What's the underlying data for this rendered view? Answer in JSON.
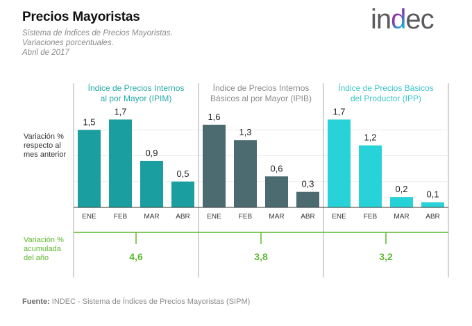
{
  "header": {
    "title": "Precios Mayoristas",
    "subtitle_lines": [
      "Sistema de Índices de Precios Mayoristas.",
      "Variaciones porcentuales.",
      "Abril de 2017"
    ],
    "logo": {
      "prefix": "in",
      "highlight": "d",
      "suffix": "ec"
    }
  },
  "row_labels": {
    "monthly": [
      "Variación %",
      "respecto al",
      "mes anterior"
    ],
    "cumulative": [
      "Variación %",
      "acumulada",
      "del año"
    ]
  },
  "source": {
    "label": "Fuente:",
    "text": " INDEC - Sistema de Índices de Precios Mayoristas (SIPM)"
  },
  "colors": {
    "IPIM": "#1a9ea0",
    "IPIB": "#4b6b70",
    "IPP": "#27d2d8",
    "cumulative": "#5cb82e",
    "header_IPIM": "#2aa8a8",
    "header_IPIB": "#8a8a8a",
    "header_IPP": "#3cc4cc"
  },
  "chart_data": {
    "type": "bar",
    "title": "Precios Mayoristas",
    "ylabel": "Variación % respecto al mes anterior",
    "categories": [
      "ENE",
      "FEB",
      "MAR",
      "ABR"
    ],
    "ylim": [
      0,
      1.7
    ],
    "grid": true,
    "series": [
      {
        "key": "IPIM",
        "name_lines": [
          "Índice de Precios Internos",
          "al por Mayor (IPIM)"
        ],
        "values": [
          1.5,
          1.7,
          0.9,
          0.5
        ],
        "labels": [
          "1,5",
          "1,7",
          "0,9",
          "0,5"
        ],
        "cumulative": "4,6",
        "cumulative_value": 4.6
      },
      {
        "key": "IPIB",
        "name_lines": [
          "Índice de Precios Internos",
          "Básicos al por Mayor (IPIB)"
        ],
        "values": [
          1.6,
          1.3,
          0.6,
          0.3
        ],
        "labels": [
          "1,6",
          "1,3",
          "0,6",
          "0,3"
        ],
        "cumulative": "3,8",
        "cumulative_value": 3.8
      },
      {
        "key": "IPP",
        "name_lines": [
          "Índice de Precios Básicos",
          "del Productor (IPP)"
        ],
        "values": [
          1.7,
          1.2,
          0.2,
          0.1
        ],
        "labels": [
          "1,7",
          "1,2",
          "0,2",
          "0,1"
        ],
        "cumulative": "3,2",
        "cumulative_value": 3.2
      }
    ]
  }
}
